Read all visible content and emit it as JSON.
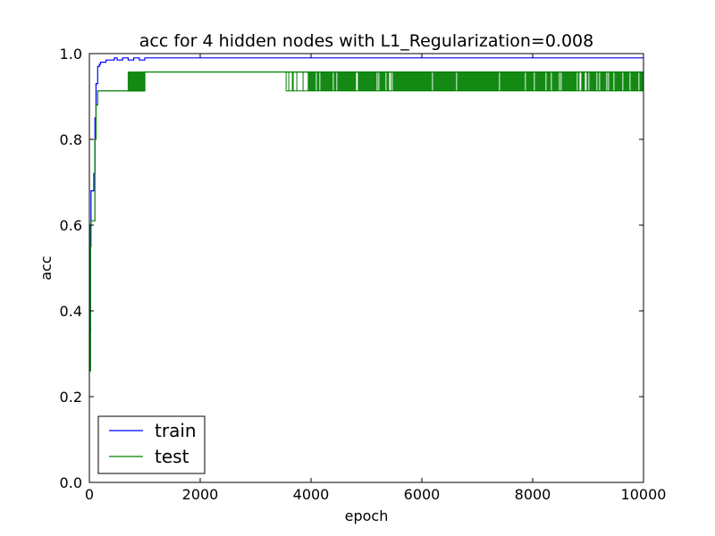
{
  "chart_data": {
    "type": "line",
    "title": "acc for 4 hidden nodes with L1_Regularization=0.008",
    "xlabel": "epoch",
    "ylabel": "acc",
    "xlim": [
      0,
      10000
    ],
    "ylim": [
      0.0,
      1.0
    ],
    "xticks": [
      0,
      2000,
      4000,
      6000,
      8000,
      10000
    ],
    "xtick_labels": [
      "0",
      "2000",
      "4000",
      "6000",
      "8000",
      "10000"
    ],
    "yticks": [
      0.0,
      0.2,
      0.4,
      0.6,
      0.8,
      1.0
    ],
    "ytick_labels": [
      "0.0",
      "0.2",
      "0.4",
      "0.6",
      "0.8",
      "1.0"
    ],
    "grid": false,
    "legend_position": "lower-left",
    "series": [
      {
        "name": "train",
        "color": "#0000ff",
        "x": [
          0,
          10,
          20,
          30,
          40,
          50,
          60,
          80,
          100,
          120,
          150,
          180,
          200,
          250,
          300,
          350,
          400,
          450,
          500,
          600,
          700,
          800,
          900,
          1000,
          1100,
          2000,
          4000,
          6000,
          8000,
          10000
        ],
        "y": [
          0.26,
          0.35,
          0.6,
          0.68,
          0.68,
          0.68,
          0.68,
          0.72,
          0.85,
          0.93,
          0.97,
          0.975,
          0.98,
          0.98,
          0.985,
          0.985,
          0.985,
          0.99,
          0.985,
          0.99,
          0.985,
          0.99,
          0.985,
          0.99,
          0.99,
          0.99,
          0.99,
          0.99,
          0.99,
          0.99
        ]
      },
      {
        "name": "test",
        "color": "#008000",
        "x": [
          0,
          10,
          20,
          30,
          40,
          50,
          60,
          80,
          100,
          120,
          150,
          200,
          300,
          500,
          700,
          1000,
          2000,
          3000,
          3500,
          4000,
          6000,
          8000,
          10000
        ],
        "y": [
          0.26,
          0.26,
          0.55,
          0.61,
          0.61,
          0.61,
          0.61,
          0.61,
          0.8,
          0.88,
          0.913,
          0.913,
          0.913,
          0.913,
          0.913,
          0.957,
          0.957,
          0.957,
          0.957,
          0.957,
          0.957,
          0.957,
          0.957
        ],
        "oscillation": [
          {
            "x_range": [
              700,
              1000
            ],
            "low": 0.913,
            "high": 0.957
          },
          {
            "x_range": [
              3550,
              3950
            ],
            "low": 0.913,
            "high": 0.957
          },
          {
            "x_range": [
              3950,
              10000
            ],
            "low": 0.913,
            "high": 0.957
          }
        ]
      }
    ]
  }
}
